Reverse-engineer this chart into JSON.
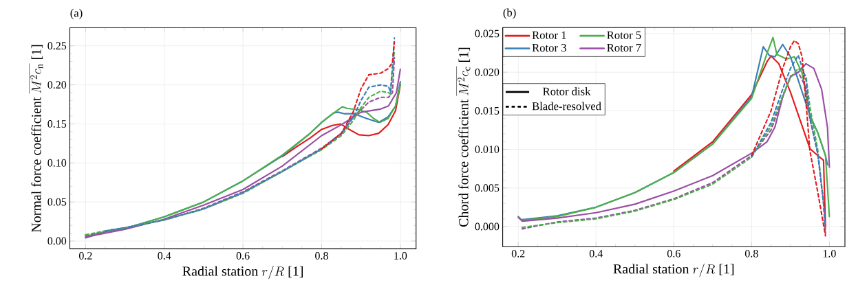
{
  "chart_data": [
    {
      "type": "line",
      "title": "(a)",
      "xlabel": "\\mbox{Radial station }r/R\\ \\mbox{[1]}",
      "ylabel": "\\mbox{Normal force coefficient }\\overline{M^2c_\\mathrm{n}}\\ \\mbox{[1]}",
      "xlim": [
        0.16,
        1.04
      ],
      "ylim": [
        -0.01,
        0.273
      ],
      "xticks": [
        0.2,
        0.4,
        0.6,
        0.8,
        {
          "value": 1.0,
          "label": "1.0"
        }
      ],
      "yticks": [
        {
          "value": 0,
          "label": "0.00"
        },
        0.05,
        {
          "value": 0.1,
          "label": "0.10"
        },
        0.15,
        {
          "value": 0.2,
          "label": "0.20"
        },
        0.25
      ],
      "grid": true,
      "series": [
        {
          "color": "#e41a1c",
          "line_style": "solid",
          "x": [
            0.7,
            0.74,
            0.771,
            0.8,
            0.827,
            0.848,
            0.87,
            0.895,
            0.92,
            0.945,
            0.969,
            0.988,
            1.0
          ],
          "values": [
            0.108,
            0.122,
            0.132,
            0.143,
            0.148,
            0.15,
            0.143,
            0.136,
            0.135,
            0.138,
            0.149,
            0.167,
            0.2
          ]
        },
        {
          "color": "#377eb8",
          "line_style": "solid",
          "x": [
            0.2,
            0.25,
            0.3,
            0.4,
            0.5,
            0.6,
            0.7,
            0.771,
            0.8,
            0.83,
            0.842,
            0.858,
            0.883,
            0.914,
            0.945,
            0.969,
            0.988,
            1.0
          ],
          "values": [
            0.004,
            0.012,
            0.016,
            0.031,
            0.05,
            0.077,
            0.109,
            0.138,
            0.152,
            0.164,
            0.165,
            0.163,
            0.163,
            0.157,
            0.152,
            0.159,
            0.173,
            0.204
          ]
        },
        {
          "color": "#4daf4a",
          "line_style": "solid",
          "x": [
            0.2,
            0.25,
            0.3,
            0.4,
            0.5,
            0.6,
            0.7,
            0.771,
            0.8,
            0.839,
            0.853,
            0.864,
            0.895,
            0.914,
            0.932,
            0.948,
            0.969,
            0.988,
            1.0
          ],
          "values": [
            0.006,
            0.012,
            0.016,
            0.031,
            0.05,
            0.077,
            0.11,
            0.138,
            0.152,
            0.167,
            0.172,
            0.17,
            0.168,
            0.165,
            0.157,
            0.152,
            0.157,
            0.173,
            0.201
          ]
        },
        {
          "color": "#984ea3",
          "line_style": "solid",
          "x": [
            0.2,
            0.3,
            0.4,
            0.5,
            0.6,
            0.7,
            0.8,
            0.85,
            0.9,
            0.95,
            0.97,
            0.99,
            1.0
          ],
          "values": [
            0.005,
            0.015,
            0.028,
            0.046,
            0.066,
            0.096,
            0.135,
            0.149,
            0.165,
            0.169,
            0.173,
            0.19,
            0.22
          ]
        },
        {
          "color": "#e41a1c",
          "line_style": "dashed",
          "x": [
            0.8,
            0.85,
            0.88,
            0.9,
            0.92,
            0.95,
            0.97,
            0.98,
            0.985
          ],
          "values": [
            0.118,
            0.138,
            0.165,
            0.195,
            0.213,
            0.215,
            0.221,
            0.229,
            0.255
          ]
        },
        {
          "color": "#377eb8",
          "line_style": "dashed",
          "x": [
            0.25,
            0.3,
            0.4,
            0.5,
            0.6,
            0.7,
            0.8,
            0.85,
            0.88,
            0.9,
            0.92,
            0.95,
            0.97,
            0.975,
            0.985
          ],
          "values": [
            0.013,
            0.017,
            0.027,
            0.041,
            0.062,
            0.089,
            0.118,
            0.137,
            0.158,
            0.18,
            0.197,
            0.2,
            0.198,
            0.19,
            0.26
          ]
        },
        {
          "color": "#4daf4a",
          "line_style": "dashed",
          "x": [
            0.2,
            0.25,
            0.3,
            0.4,
            0.5,
            0.6,
            0.7,
            0.8,
            0.85,
            0.88,
            0.9,
            0.92,
            0.95,
            0.97,
            0.975,
            0.985
          ],
          "values": [
            0.008,
            0.013,
            0.017,
            0.027,
            0.041,
            0.061,
            0.089,
            0.117,
            0.135,
            0.154,
            0.171,
            0.184,
            0.192,
            0.19,
            0.188,
            0.245
          ]
        },
        {
          "color": "#984ea3",
          "line_style": "dashed",
          "x": [
            0.2,
            0.25,
            0.3,
            0.4,
            0.5,
            0.6,
            0.7,
            0.8,
            0.85,
            0.88,
            0.9,
            0.92,
            0.95,
            0.97,
            0.98,
            0.985
          ],
          "values": [
            0.007,
            0.012,
            0.017,
            0.027,
            0.042,
            0.063,
            0.09,
            0.119,
            0.138,
            0.16,
            0.168,
            0.178,
            0.184,
            0.184,
            0.19,
            0.235
          ]
        }
      ]
    },
    {
      "type": "line",
      "title": "(b)",
      "xlabel": "\\mbox{Radial station }r/R\\ \\mbox{[1]}",
      "ylabel": "\\mbox{Chord force coefficient }\\overline{M^2c_\\mathrm{c}}\\ \\mbox{[1]}",
      "xlim": [
        0.16,
        1.04
      ],
      "ylim": [
        -0.0026,
        0.0258
      ],
      "xticks": [
        0.2,
        0.4,
        0.6,
        0.8,
        {
          "value": 1.0,
          "label": "1.0"
        }
      ],
      "yticks": [
        {
          "value": 0,
          "label": "0.000"
        },
        0.005,
        {
          "value": 0.01,
          "label": "0.010"
        },
        0.015,
        {
          "value": 0.02,
          "label": "0.020"
        },
        0.025
      ],
      "grid": true,
      "legend": "top left",
      "annotations": [
        "Rotor disk",
        "Blade-resolved"
      ],
      "series": [
        {
          "name": "Rotor 1",
          "color": "#e41a1c",
          "line_style": "solid",
          "x": [
            0.6,
            0.7,
            0.8,
            0.84,
            0.85,
            0.87,
            0.9,
            0.95,
            0.97,
            0.985,
            0.99
          ],
          "values": [
            0.0072,
            0.011,
            0.0171,
            0.0214,
            0.0221,
            0.0211,
            0.0174,
            0.0101,
            0.0092,
            0.0086,
            0.0
          ]
        },
        {
          "name": "Rotor 3",
          "color": "#377eb8",
          "line_style": "solid",
          "x": [
            0.21,
            0.3,
            0.4,
            0.5,
            0.6,
            0.7,
            0.8,
            0.83,
            0.845,
            0.86,
            0.88,
            0.9,
            0.95,
            0.97,
            0.99,
            0.995
          ],
          "values": [
            0.0009,
            0.0014,
            0.0025,
            0.0044,
            0.007,
            0.0107,
            0.0168,
            0.0233,
            0.0222,
            0.022,
            0.0236,
            0.022,
            0.0144,
            0.0122,
            0.0092,
            0.008
          ]
        },
        {
          "name": "Rotor 5",
          "color": "#4daf4a",
          "line_style": "solid",
          "x": [
            0.2,
            0.21,
            0.3,
            0.4,
            0.5,
            0.6,
            0.7,
            0.8,
            0.84,
            0.855,
            0.865,
            0.89,
            0.91,
            0.93,
            0.95,
            0.97,
            0.99,
            1.0
          ],
          "values": [
            0.0013,
            0.0008,
            0.0013,
            0.0025,
            0.0044,
            0.007,
            0.0107,
            0.0166,
            0.0225,
            0.0245,
            0.0223,
            0.0217,
            0.022,
            0.0199,
            0.0141,
            0.0122,
            0.0092,
            0.0013
          ]
        },
        {
          "name": "Rotor 7",
          "color": "#984ea3",
          "line_style": "solid",
          "x": [
            0.2,
            0.21,
            0.3,
            0.4,
            0.5,
            0.6,
            0.7,
            0.8,
            0.84,
            0.86,
            0.88,
            0.9,
            0.92,
            0.94,
            0.96,
            0.98,
            0.995,
            1.0
          ],
          "values": [
            0.0012,
            0.0007,
            0.0011,
            0.0018,
            0.0029,
            0.0046,
            0.0066,
            0.0095,
            0.011,
            0.0129,
            0.0168,
            0.0194,
            0.02,
            0.0211,
            0.0205,
            0.0178,
            0.0129,
            0.0077
          ]
        },
        {
          "color": "#e41a1c",
          "line_style": "dashed",
          "x": [
            0.8,
            0.85,
            0.88,
            0.9,
            0.91,
            0.92,
            0.93,
            0.94,
            0.95,
            0.97,
            0.99
          ],
          "values": [
            0.0092,
            0.015,
            0.0205,
            0.0233,
            0.0241,
            0.0237,
            0.022,
            0.016,
            0.0098,
            0.0045,
            -0.0012
          ]
        },
        {
          "color": "#377eb8",
          "line_style": "dashed",
          "x": [
            0.8,
            0.85,
            0.88,
            0.9,
            0.92,
            0.94,
            0.95,
            0.97,
            0.985,
            0.99
          ],
          "values": [
            0.009,
            0.0135,
            0.0178,
            0.0205,
            0.0222,
            0.019,
            0.014,
            0.0095,
            0.003,
            -0.0007
          ]
        },
        {
          "color": "#4daf4a",
          "line_style": "dashed",
          "x": [
            0.21,
            0.3,
            0.4,
            0.5,
            0.6,
            0.7,
            0.8,
            0.85,
            0.88,
            0.9,
            0.92,
            0.94,
            0.95,
            0.97,
            0.985
          ],
          "values": [
            -0.0001,
            0.0005,
            0.001,
            0.002,
            0.0035,
            0.0055,
            0.009,
            0.013,
            0.017,
            0.0193,
            0.0205,
            0.0195,
            0.0155,
            0.01,
            0.003
          ]
        },
        {
          "color": "#984ea3",
          "line_style": "dashed",
          "x": [
            0.21,
            0.3,
            0.4,
            0.5,
            0.6,
            0.7,
            0.8,
            0.85,
            0.88,
            0.9,
            0.92,
            0.94,
            0.95,
            0.97,
            0.985,
            0.99
          ],
          "values": [
            -0.0003,
            0.0006,
            0.0011,
            0.0021,
            0.0036,
            0.0057,
            0.0092,
            0.0125,
            0.0168,
            0.0195,
            0.02,
            0.018,
            0.014,
            0.0095,
            0.003,
            -0.0009
          ]
        }
      ]
    }
  ]
}
